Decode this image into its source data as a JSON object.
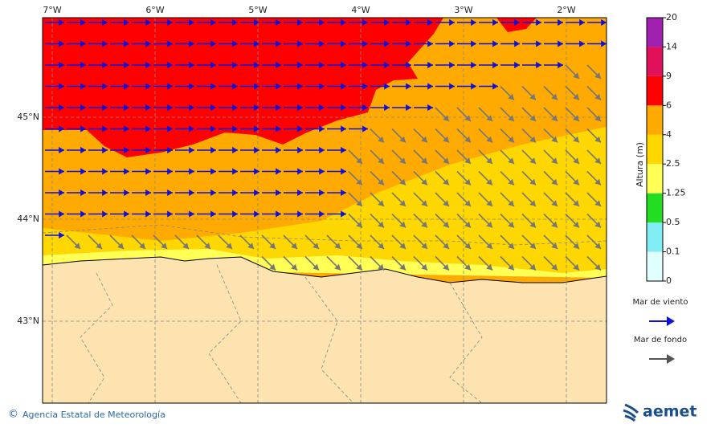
{
  "map": {
    "lon_labels": [
      "7°W",
      "6°W",
      "5°W",
      "4°W",
      "3°W",
      "2°W"
    ],
    "lat_labels": [
      "45°N",
      "44°N",
      "43°N"
    ],
    "colorbar": {
      "label": "Altura (m)",
      "levels": [
        0,
        0.1,
        0.5,
        1.25,
        2.5,
        4,
        6,
        9,
        14,
        20
      ],
      "colors": [
        "#e0ffff",
        "#80ecf4",
        "#22dd22",
        "#ffff55",
        "#ffd700",
        "#ffaa00",
        "#ff0000",
        "#e0105a",
        "#a020b0"
      ]
    },
    "legend": [
      {
        "label": "Mar de viento",
        "color": "#1010dd"
      },
      {
        "label": "Mar de fondo",
        "color": "#555555"
      }
    ]
  },
  "footer": {
    "copyright": "©",
    "agency": "Agencia Estatal de Meteorología",
    "logo": "aemet"
  }
}
